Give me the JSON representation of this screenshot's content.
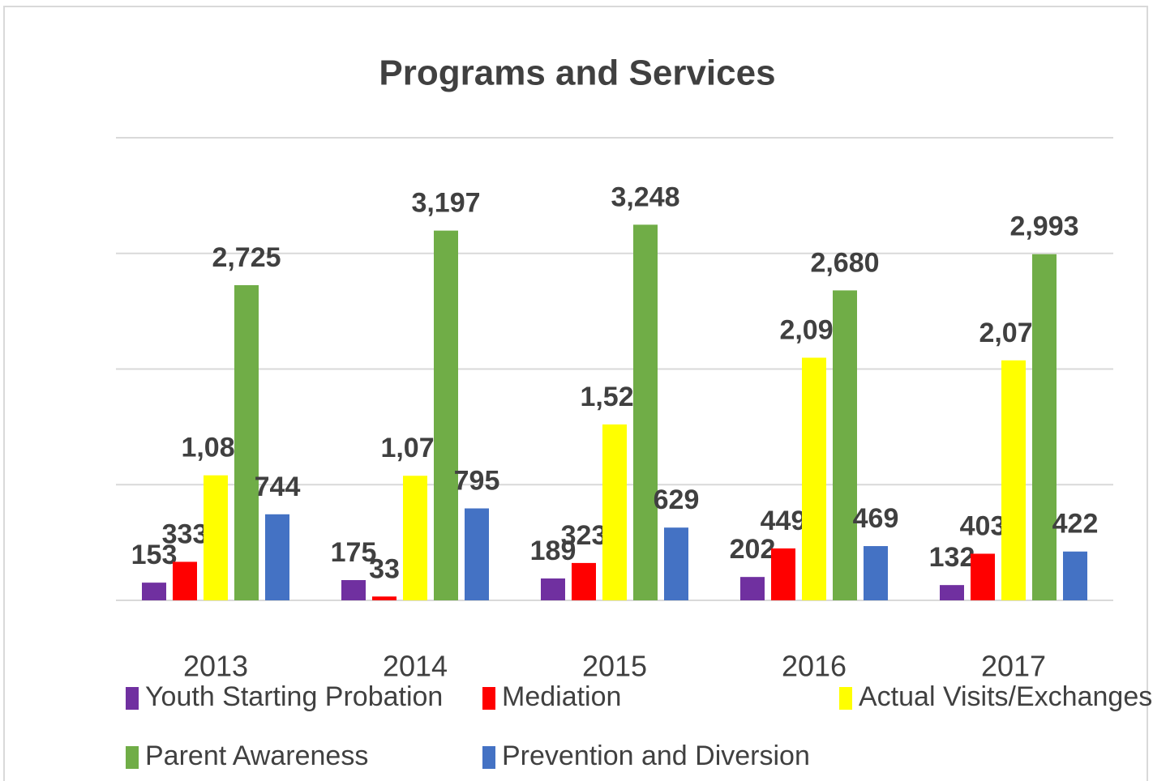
{
  "chart_data": {
    "type": "bar",
    "title": "Programs and Services",
    "categories": [
      "2013",
      "2014",
      "2015",
      "2016",
      "2017"
    ],
    "ylim": [
      0,
      4000
    ],
    "yticks": [
      0,
      1000,
      2000,
      3000,
      4000
    ],
    "grid": true,
    "legend": "bottom",
    "series": [
      {
        "name": "Youth Starting Probation",
        "color": "#7030a0",
        "values": [
          153,
          175,
          189,
          202,
          132
        ],
        "value_labels": [
          "153",
          "175",
          "189",
          "202",
          "132"
        ]
      },
      {
        "name": "Mediation",
        "color": "#ff0000",
        "values": [
          333,
          33,
          323,
          449,
          403
        ],
        "value_labels": [
          "333",
          "33",
          "323",
          "449",
          "403"
        ]
      },
      {
        "name": "Actual Visits/Exchanges",
        "color": "#ffff00",
        "values": [
          1081,
          1077,
          1521,
          2098,
          2075
        ],
        "value_labels": [
          "1,081",
          "1,077",
          "1,521",
          "2,098",
          "2,075"
        ]
      },
      {
        "name": "Parent Awareness",
        "color": "#70ad47",
        "values": [
          2725,
          3197,
          3248,
          2680,
          2993
        ],
        "value_labels": [
          "2,725",
          "3,197",
          "3,248",
          "2,680",
          "2,993"
        ]
      },
      {
        "name": "Prevention and Diversion",
        "color": "#4472c4",
        "values": [
          744,
          795,
          629,
          469,
          422
        ],
        "value_labels": [
          "744",
          "795",
          "629",
          "469",
          "422"
        ]
      }
    ]
  }
}
